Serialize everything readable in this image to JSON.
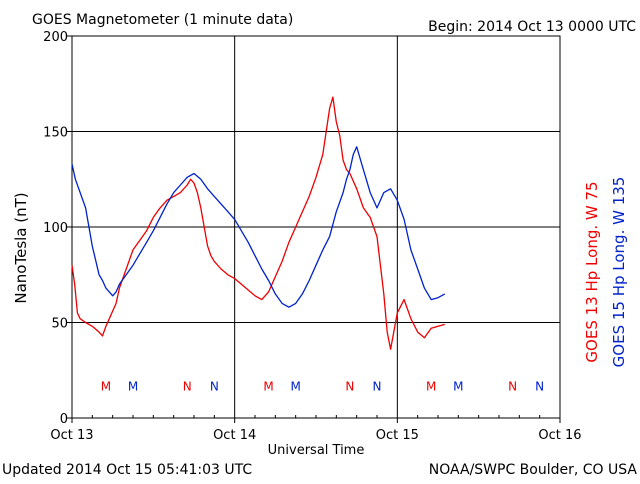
{
  "header": {
    "title": "GOES Magnetometer (1 minute data)",
    "begin_label": "Begin:  2014 Oct 13 0000 UTC"
  },
  "footer": {
    "updated": "Updated 2014 Oct 15 05:41:03 UTC",
    "credit": "NOAA/SWPC Boulder, CO USA"
  },
  "legend": {
    "goes13": "GOES 13 Hp  Long. W 75",
    "goes15": "GOES 15 Hp  Long. W 135"
  },
  "colors": {
    "goes13": "#ee0000",
    "goes15": "#0022cc",
    "axes": "#000000"
  },
  "chart_data": {
    "type": "line",
    "title": "GOES Magnetometer (1 minute data)",
    "xlabel": "Universal Time",
    "ylabel": "NanoTesla (nT)",
    "x_unit": "hours since 2014 Oct 13 0000 UTC",
    "xlim": [
      0,
      72
    ],
    "ylim": [
      0,
      200
    ],
    "x_ticks": [
      {
        "x": 0,
        "label": "Oct 13"
      },
      {
        "x": 24,
        "label": "Oct 14"
      },
      {
        "x": 48,
        "label": "Oct 15"
      },
      {
        "x": 72,
        "label": "Oct 16"
      }
    ],
    "y_ticks": [
      0,
      50,
      100,
      150,
      200
    ],
    "grid": true,
    "legend_placement": "right (vertical)",
    "series": [
      {
        "name": "GOES 13 Hp  Long. W 75",
        "color": "#ee0000",
        "x": [
          0,
          0.4,
          0.8,
          1.2,
          2,
          3,
          4,
          4.5,
          5,
          5.5,
          6,
          6.5,
          7,
          8,
          9,
          10,
          11,
          12,
          13,
          14,
          15,
          16,
          17,
          17.5,
          18,
          18.5,
          19,
          19.5,
          20,
          20.5,
          21,
          22,
          23,
          24,
          25,
          26,
          27,
          28,
          29,
          30,
          31,
          32,
          33,
          34,
          35,
          36,
          37,
          38,
          38.5,
          39,
          39.5,
          40,
          40.5,
          41,
          42,
          43,
          44,
          45,
          46,
          46.5,
          47,
          48,
          49,
          50,
          51,
          52,
          53,
          54,
          55
        ],
        "y": [
          80,
          70,
          55,
          52,
          50,
          48,
          45,
          43,
          48,
          52,
          56,
          60,
          68,
          78,
          88,
          93,
          98,
          105,
          110,
          114,
          116,
          118,
          122,
          125,
          123,
          118,
          110,
          100,
          90,
          85,
          82,
          78,
          75,
          73,
          70,
          67,
          64,
          62,
          66,
          74,
          82,
          92,
          100,
          108,
          116,
          126,
          138,
          162,
          168,
          155,
          148,
          135,
          130,
          128,
          120,
          110,
          105,
          95,
          65,
          45,
          36,
          55,
          62,
          52,
          45,
          42,
          47,
          48,
          49
        ]
      },
      {
        "name": "GOES 15 Hp  Long. W 135",
        "color": "#0022cc",
        "x": [
          0,
          0.5,
          1,
          2,
          3,
          4,
          4.5,
          5,
          5.5,
          6,
          6.5,
          7,
          8,
          9,
          10,
          11,
          12,
          13,
          14,
          15,
          16,
          17,
          18,
          19,
          20,
          21,
          22,
          23,
          24,
          25,
          26,
          27,
          28,
          29,
          30,
          31,
          32,
          33,
          34,
          35,
          36,
          37,
          38,
          39,
          40,
          40.5,
          41,
          41.5,
          42,
          43,
          44,
          45,
          46,
          47,
          48,
          49,
          50,
          51,
          52,
          53,
          54,
          55
        ],
        "y": [
          133,
          125,
          120,
          110,
          90,
          75,
          72,
          68,
          66,
          64,
          66,
          70,
          75,
          80,
          86,
          92,
          98,
          105,
          112,
          118,
          122,
          126,
          128,
          125,
          120,
          116,
          112,
          108,
          104,
          98,
          92,
          85,
          78,
          72,
          65,
          60,
          58,
          60,
          65,
          72,
          80,
          88,
          95,
          108,
          118,
          125,
          130,
          138,
          142,
          130,
          118,
          110,
          118,
          120,
          114,
          104,
          88,
          78,
          68,
          62,
          63,
          65
        ]
      }
    ],
    "markers": [
      {
        "label": "M",
        "x": 5.0,
        "series": "GOES 13 Hp  Long. W 75"
      },
      {
        "label": "M",
        "x": 9.0,
        "series": "GOES 15 Hp  Long. W 135"
      },
      {
        "label": "N",
        "x": 17.0,
        "series": "GOES 13 Hp  Long. W 75"
      },
      {
        "label": "N",
        "x": 21.0,
        "series": "GOES 15 Hp  Long. W 135"
      },
      {
        "label": "M",
        "x": 29.0,
        "series": "GOES 13 Hp  Long. W 75"
      },
      {
        "label": "M",
        "x": 33.0,
        "series": "GOES 15 Hp  Long. W 135"
      },
      {
        "label": "N",
        "x": 41.0,
        "series": "GOES 13 Hp  Long. W 75"
      },
      {
        "label": "N",
        "x": 45.0,
        "series": "GOES 15 Hp  Long. W 135"
      },
      {
        "label": "M",
        "x": 53.0,
        "series": "GOES 13 Hp  Long. W 75"
      },
      {
        "label": "M",
        "x": 57.0,
        "series": "GOES 15 Hp  Long. W 135"
      },
      {
        "label": "N",
        "x": 65.0,
        "series": "GOES 13 Hp  Long. W 75"
      },
      {
        "label": "N",
        "x": 69.0,
        "series": "GOES 15 Hp  Long. W 135"
      }
    ],
    "marker_y": 17
  }
}
